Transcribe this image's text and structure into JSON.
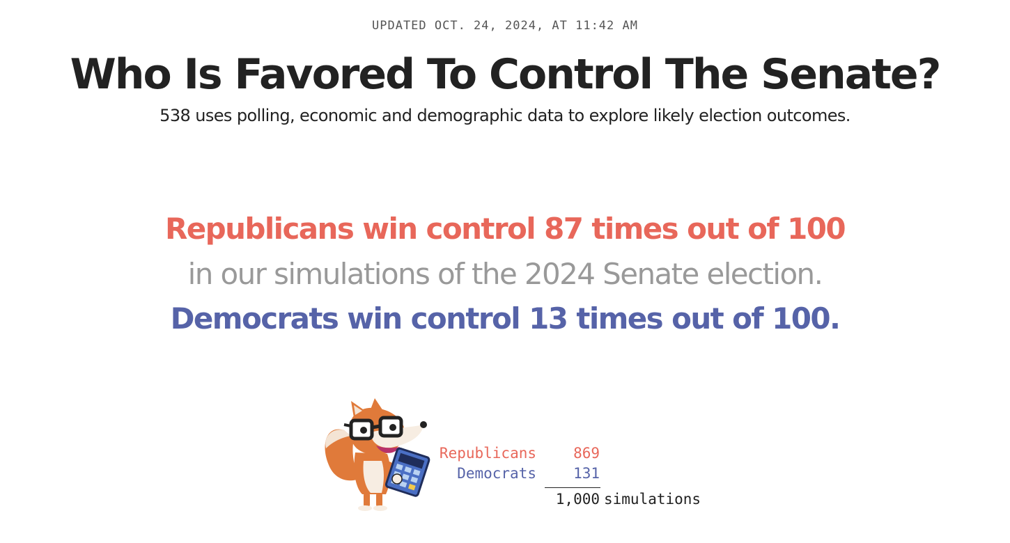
{
  "header": {
    "updated": "UPDATED OCT. 24, 2024, AT 11:42 AM",
    "title": "Who Is Favored To Control The Senate?",
    "subtitle": "538 uses polling, economic and demographic data to explore likely election outcomes."
  },
  "headline": {
    "republican_line": "Republicans win control 87 times out of 100",
    "middle_line": "in our simulations of the 2024 Senate election.",
    "democrat_line": "Democrats win control 13 times out of 100."
  },
  "tally": {
    "republicans": {
      "label": "Republicans",
      "value": "869"
    },
    "democrats": {
      "label": "Democrats",
      "value": "131"
    },
    "total": "1,000",
    "total_unit": "simulations"
  },
  "colors": {
    "republican": "#e8675a",
    "democrat": "#5663a8",
    "muted": "#999999",
    "text": "#222222"
  },
  "icons": {
    "mascot": "fox-with-glasses-and-calculator-icon"
  }
}
